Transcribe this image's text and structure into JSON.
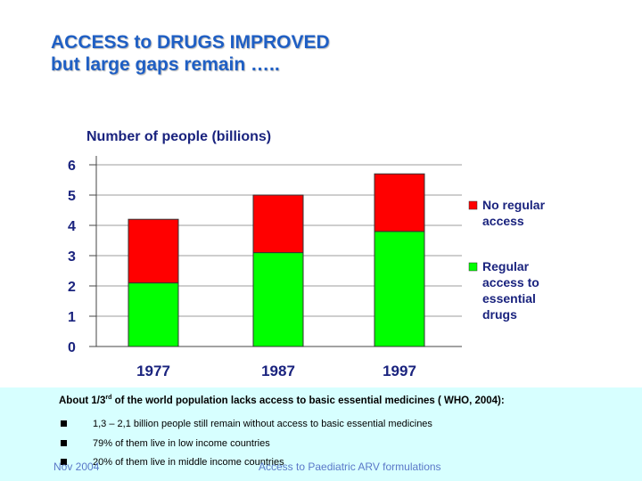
{
  "slide": {
    "title_line1": "ACCESS to DRUGS IMPROVED",
    "title_line2": "but large gaps remain ….."
  },
  "chart_data": {
    "type": "bar",
    "stacked": true,
    "title": "Number of people (billions)",
    "categories": [
      "1977",
      "1987",
      "1997"
    ],
    "series": [
      {
        "name": "Regular access to essential drugs",
        "color": "#00ff00",
        "values": [
          2.1,
          3.1,
          3.8
        ]
      },
      {
        "name": "No regular access",
        "color": "#ff0000",
        "values": [
          2.1,
          1.9,
          1.9
        ]
      }
    ],
    "legend": {
      "position": "right",
      "items": [
        {
          "lines": [
            "No regular",
            "access"
          ],
          "color": "#ff0000"
        },
        {
          "lines": [
            "Regular",
            "access to",
            "essential",
            "drugs"
          ],
          "color": "#00ff00"
        }
      ]
    },
    "ylim": [
      0,
      6
    ],
    "yticks": [
      "0",
      "1",
      "2",
      "3",
      "4",
      "5",
      "6"
    ],
    "grid": true
  },
  "footer": {
    "heading_pre": "About 1/3",
    "heading_sup": "rd",
    "heading_post": " of the world population lacks access to basic essential medicines ( WHO, 2004):",
    "bullets": [
      "1,3 – 2,1 billion people still remain without access to basic essential medicines",
      "79% of them live in low income countries",
      "20% of them live in middle income countries"
    ],
    "date": "Nov 2004",
    "topic": "Access to Paediatric ARV formulations"
  }
}
